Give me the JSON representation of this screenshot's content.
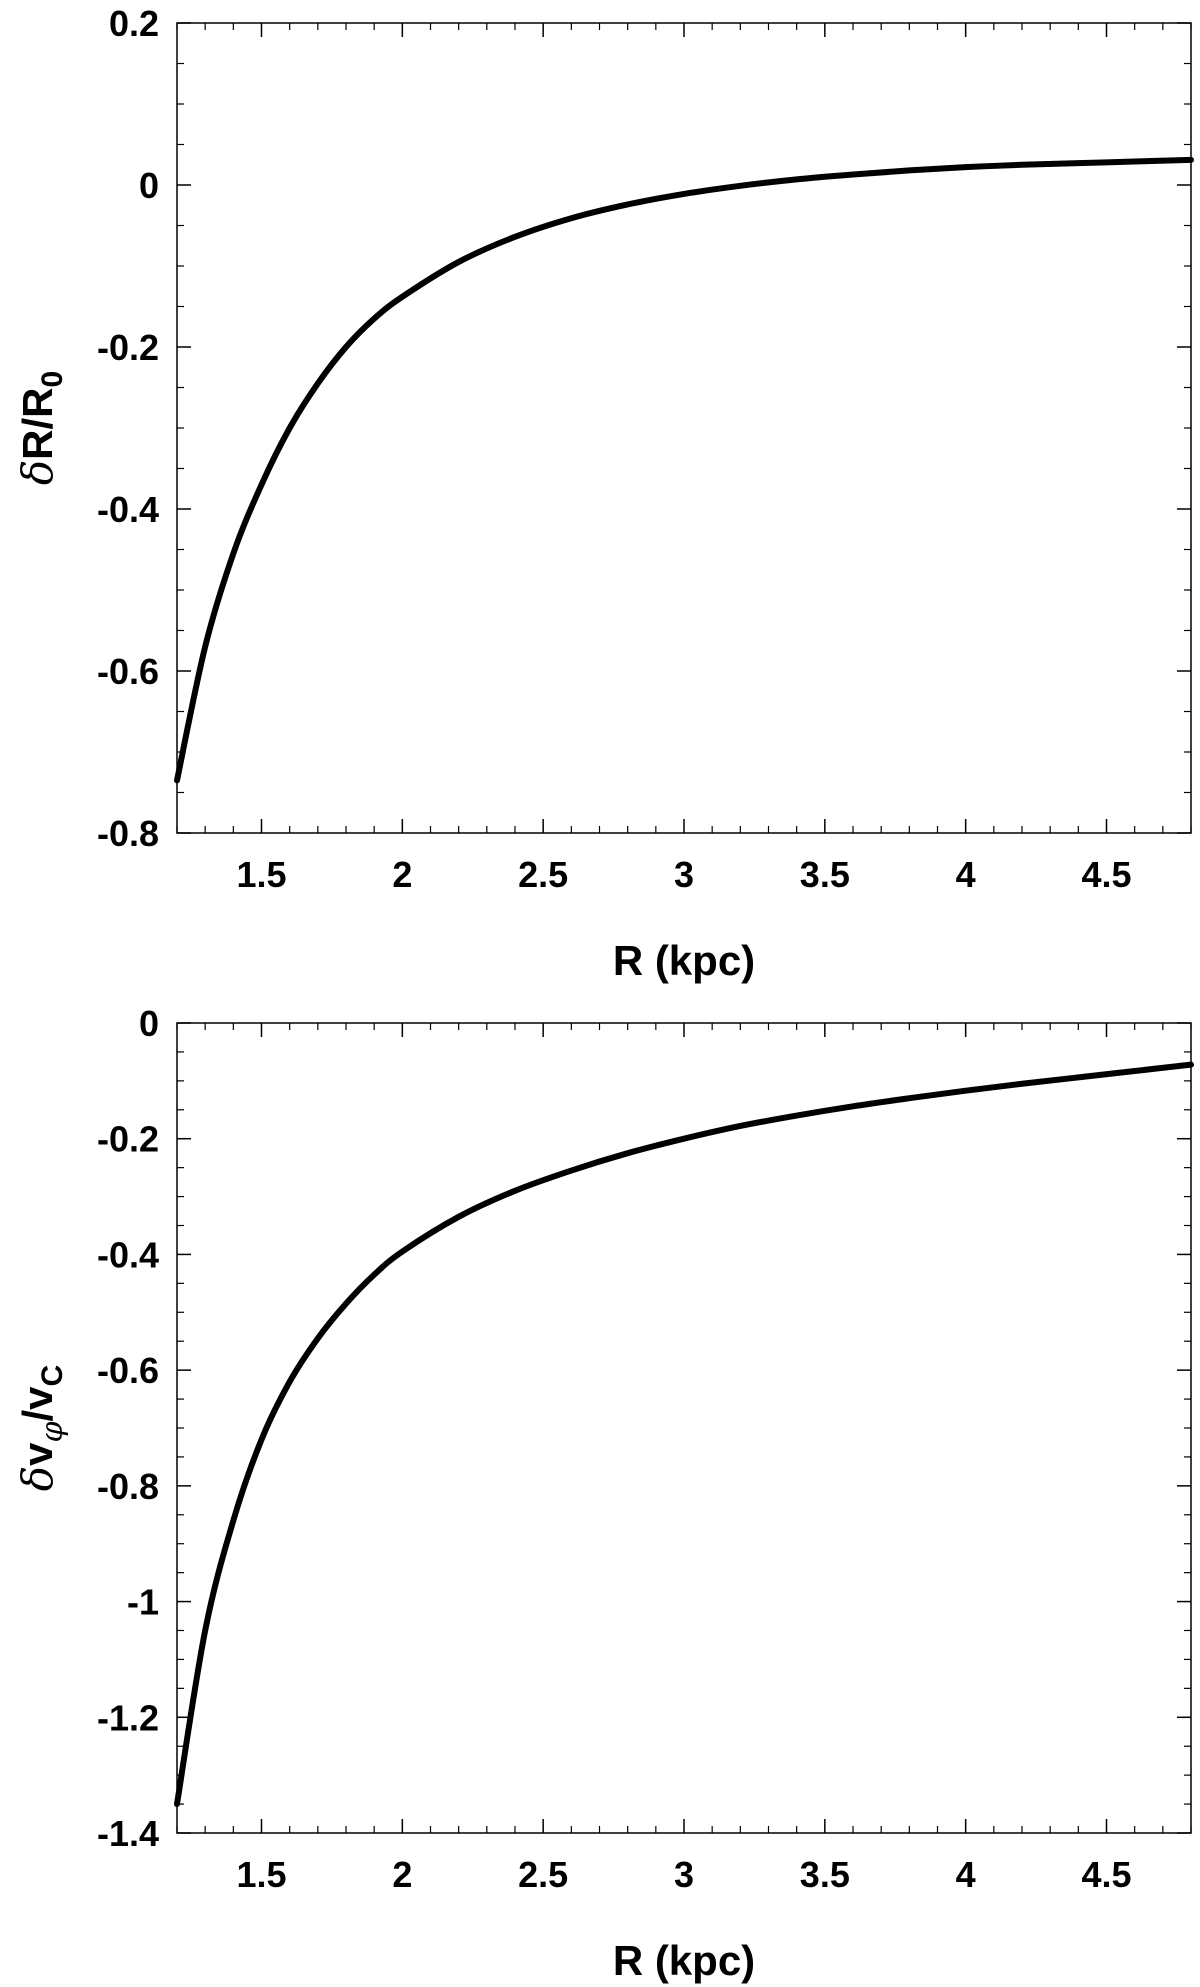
{
  "chart_data": [
    {
      "type": "line",
      "xlabel": "R (kpc)",
      "ylabel": {
        "prefix": "δ",
        "main": "R/R",
        "sub": "0"
      },
      "xlim": [
        1.2,
        4.8
      ],
      "ylim": [
        -0.8,
        0.2
      ],
      "xticks": [
        1.5,
        2,
        2.5,
        3,
        3.5,
        4,
        4.5
      ],
      "xtick_labels": [
        "1.5",
        "2",
        "2.5",
        "3",
        "3.5",
        "4",
        "4.5"
      ],
      "yticks": [
        0.2,
        0,
        -0.2,
        -0.4,
        -0.6,
        -0.8
      ],
      "ytick_labels": [
        "0.2",
        "0",
        "-0.2",
        "-0.4",
        "-0.6",
        "-0.8"
      ],
      "grid": false,
      "legend": "none",
      "line_color": "#000000",
      "series": [
        {
          "x": [
            1.2,
            1.3,
            1.4,
            1.5,
            1.6,
            1.7,
            1.8,
            1.9,
            2.0,
            2.2,
            2.4,
            2.6,
            2.8,
            3.0,
            3.2,
            3.4,
            3.6,
            3.8,
            4.0,
            4.2,
            4.4,
            4.6,
            4.8
          ],
          "y": [
            -0.735,
            -0.57,
            -0.455,
            -0.37,
            -0.3,
            -0.245,
            -0.2,
            -0.165,
            -0.138,
            -0.095,
            -0.064,
            -0.041,
            -0.024,
            -0.011,
            -0.001,
            0.007,
            0.013,
            0.018,
            0.022,
            0.025,
            0.027,
            0.029,
            0.031
          ]
        }
      ]
    },
    {
      "type": "line",
      "xlabel": "R (kpc)",
      "ylabel": {
        "prefix": "δ",
        "main1": "v",
        "sub1": "φ",
        "main2": "/v",
        "sub2": "C"
      },
      "xlim": [
        1.2,
        4.8
      ],
      "ylim": [
        -1.4,
        0
      ],
      "xticks": [
        1.5,
        2,
        2.5,
        3,
        3.5,
        4,
        4.5
      ],
      "xtick_labels": [
        "1.5",
        "2",
        "2.5",
        "3",
        "3.5",
        "4",
        "4.5"
      ],
      "yticks": [
        0,
        -0.2,
        -0.4,
        -0.6,
        -0.8,
        -1,
        -1.2,
        -1.4
      ],
      "ytick_labels": [
        "0",
        "-0.2",
        "-0.4",
        "-0.6",
        "-0.8",
        "-1",
        "-1.2",
        "-1.4"
      ],
      "grid": false,
      "legend": "none",
      "line_color": "#000000",
      "series": [
        {
          "x": [
            1.2,
            1.3,
            1.4,
            1.5,
            1.6,
            1.7,
            1.8,
            1.9,
            2.0,
            2.2,
            2.4,
            2.6,
            2.8,
            3.0,
            3.2,
            3.4,
            3.6,
            3.8,
            4.0,
            4.2,
            4.4,
            4.6,
            4.8
          ],
          "y": [
            -1.35,
            -1.05,
            -0.86,
            -0.72,
            -0.62,
            -0.545,
            -0.485,
            -0.435,
            -0.395,
            -0.335,
            -0.29,
            -0.255,
            -0.225,
            -0.2,
            -0.178,
            -0.16,
            -0.144,
            -0.13,
            -0.117,
            -0.105,
            -0.094,
            -0.083,
            -0.072
          ]
        }
      ]
    }
  ]
}
